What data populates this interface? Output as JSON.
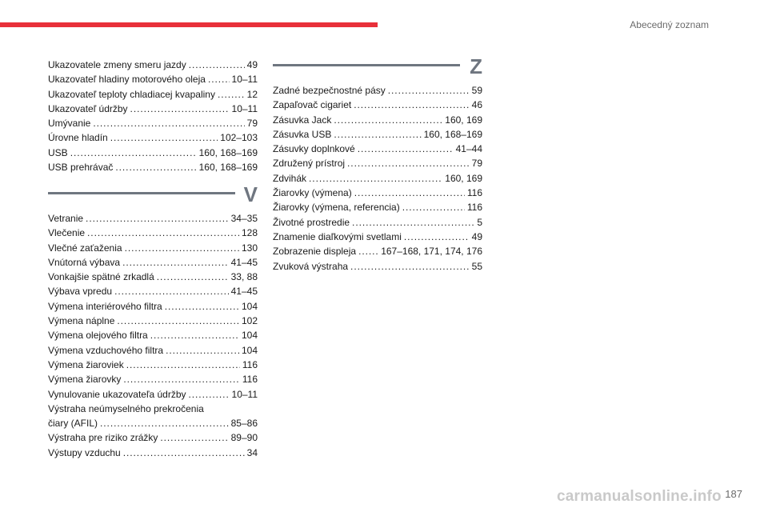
{
  "header": {
    "section_title": "Abecedný zoznam",
    "accent_color": "#e8303a"
  },
  "left_column": {
    "u_entries": [
      {
        "label": "Ukazovatele zmeny smeru jazdy",
        "pages": "49"
      },
      {
        "label": "Ukazovateľ hladiny motorového oleja",
        "pages": "10–11"
      },
      {
        "label": "Ukazovateľ teploty chladiacej kvapaliny",
        "pages": "12"
      },
      {
        "label": "Ukazovateľ údržby",
        "pages": "10–11"
      },
      {
        "label": "Umývanie",
        "pages": "79"
      },
      {
        "label": "Úrovne hladín",
        "pages": "102–103"
      },
      {
        "label": "USB",
        "pages": "160, 168–169"
      },
      {
        "label": "USB prehrávač",
        "pages": "160, 168–169"
      }
    ],
    "v_letter": "V",
    "v_entries": [
      {
        "label": "Vetranie",
        "pages": "34–35"
      },
      {
        "label": "Vlečenie",
        "pages": "128"
      },
      {
        "label": "Vlečné zaťaženia",
        "pages": "130"
      },
      {
        "label": "Vnútorná výbava",
        "pages": "41–45"
      },
      {
        "label": "Vonkajšie spätné zrkadlá",
        "pages": "33, 88"
      },
      {
        "label": "Výbava vpredu",
        "pages": "41–45"
      },
      {
        "label": "Výmena interiérového filtra",
        "pages": "104"
      },
      {
        "label": "Výmena náplne",
        "pages": "102"
      },
      {
        "label": "Výmena olejového filtra",
        "pages": "104"
      },
      {
        "label": "Výmena vzduchového filtra",
        "pages": "104"
      },
      {
        "label": "Výmena žiaroviek",
        "pages": "116"
      },
      {
        "label": "Výmena žiarovky",
        "pages": "116"
      },
      {
        "label": "Vynulovanie ukazovateľa údržby",
        "pages": "10–11"
      }
    ],
    "v_two_line": {
      "line1": "Výstraha neúmyselného prekročenia",
      "line2": "čiary (AFIL)",
      "pages": "85–86"
    },
    "v_entries_tail": [
      {
        "label": "Výstraha pre riziko zrážky",
        "pages": "89–90"
      },
      {
        "label": "Výstupy vzduchu",
        "pages": "34"
      }
    ]
  },
  "right_column": {
    "z_letter": "Z",
    "z_entries": [
      {
        "label": "Zadné bezpečnostné pásy",
        "pages": "59"
      },
      {
        "label": "Zapaľovač cigariet",
        "pages": "46"
      },
      {
        "label": "Zásuvka Jack",
        "pages": "160, 169"
      },
      {
        "label": "Zásuvka USB",
        "pages": "160, 168–169"
      },
      {
        "label": "Zásuvky doplnkové",
        "pages": "41–44"
      },
      {
        "label": "Združený prístroj",
        "pages": "79"
      },
      {
        "label": "Zdvihák",
        "pages": "160, 169"
      },
      {
        "label": "Žiarovky (výmena)",
        "pages": "116"
      },
      {
        "label": "Žiarovky (výmena, referencia)",
        "pages": "116"
      },
      {
        "label": "Životné prostredie",
        "pages": "5"
      },
      {
        "label": "Znamenie diaľkovými svetlami",
        "pages": "49"
      },
      {
        "label": "Zobrazenie displeja",
        "pages": "167–168, 171, 174, 176"
      },
      {
        "label": "Zvuková výstraha",
        "pages": "55"
      }
    ]
  },
  "footer": {
    "page_number": "187",
    "watermark": "carmanualsonline.info"
  }
}
